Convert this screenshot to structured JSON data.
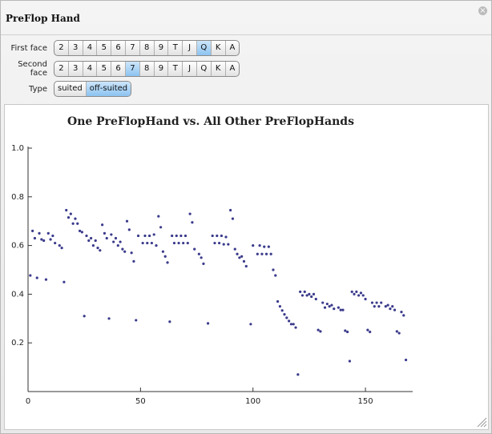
{
  "panel": {
    "title": "PreFlop Hand",
    "controls": [
      {
        "label": "First face",
        "options": [
          "2",
          "3",
          "4",
          "5",
          "6",
          "7",
          "8",
          "9",
          "T",
          "J",
          "Q",
          "K",
          "A"
        ],
        "selected": 10
      },
      {
        "label": "Second face",
        "options": [
          "2",
          "3",
          "4",
          "5",
          "6",
          "7",
          "8",
          "9",
          "T",
          "J",
          "Q",
          "K",
          "A"
        ],
        "selected": 5
      },
      {
        "label": "Type",
        "options": [
          "suited",
          "off-suited"
        ],
        "selected": 1
      }
    ]
  },
  "chart_data": {
    "type": "scatter",
    "title": "One PreFlopHand vs. All Other PreFlopHands",
    "color": "#3b3b8c",
    "x": [
      1,
      2,
      3,
      4,
      5,
      6,
      7,
      8,
      9,
      10,
      11,
      12,
      14,
      15,
      16,
      17,
      18,
      19,
      20,
      21,
      22,
      23,
      24,
      25,
      26,
      27,
      28,
      29,
      30,
      31,
      32,
      33,
      34,
      35,
      36,
      37,
      38,
      39,
      40,
      41,
      42,
      43,
      44,
      45,
      46,
      47,
      48,
      49,
      51,
      52,
      53,
      54,
      55,
      56,
      57,
      58,
      59,
      60,
      61,
      62,
      63,
      64,
      65,
      66,
      67,
      68,
      69,
      70,
      71,
      72,
      73,
      74,
      76,
      77,
      78,
      80,
      82,
      83,
      84,
      85,
      86,
      87,
      88,
      89,
      90,
      91,
      92,
      93,
      94,
      95,
      96,
      97,
      99,
      100,
      102,
      103,
      104,
      105,
      106,
      107,
      108,
      109,
      110,
      111,
      112,
      113,
      114,
      115,
      116,
      117,
      118,
      119,
      120,
      121,
      122,
      123,
      124,
      125,
      126,
      127,
      128,
      129,
      130,
      131,
      132,
      133,
      134,
      135,
      136,
      138,
      139,
      140,
      141,
      142,
      143,
      144,
      145,
      146,
      147,
      148,
      149,
      150,
      151,
      152,
      153,
      154,
      155,
      156,
      157,
      159,
      160,
      161,
      162,
      163,
      164,
      165,
      166,
      167,
      168
    ],
    "values": [
      0.477,
      0.66,
      0.63,
      0.467,
      0.65,
      0.625,
      0.62,
      0.46,
      0.65,
      0.625,
      0.64,
      0.61,
      0.6,
      0.59,
      0.45,
      0.745,
      0.715,
      0.73,
      0.69,
      0.71,
      0.69,
      0.66,
      0.655,
      0.31,
      0.64,
      0.62,
      0.63,
      0.6,
      0.62,
      0.59,
      0.58,
      0.685,
      0.65,
      0.63,
      0.3,
      0.645,
      0.615,
      0.63,
      0.6,
      0.615,
      0.585,
      0.575,
      0.7,
      0.665,
      0.57,
      0.535,
      0.293,
      0.64,
      0.61,
      0.64,
      0.61,
      0.64,
      0.61,
      0.645,
      0.6,
      0.72,
      0.675,
      0.575,
      0.555,
      0.53,
      0.287,
      0.64,
      0.61,
      0.64,
      0.61,
      0.64,
      0.61,
      0.64,
      0.61,
      0.73,
      0.695,
      0.585,
      0.565,
      0.55,
      0.525,
      0.28,
      0.64,
      0.61,
      0.64,
      0.61,
      0.64,
      0.605,
      0.635,
      0.605,
      0.745,
      0.71,
      0.585,
      0.565,
      0.55,
      0.555,
      0.535,
      0.515,
      0.277,
      0.6,
      0.565,
      0.6,
      0.565,
      0.595,
      0.565,
      0.595,
      0.565,
      0.5,
      0.477,
      0.37,
      0.35,
      0.333,
      0.317,
      0.303,
      0.29,
      0.277,
      0.277,
      0.263,
      0.07,
      0.41,
      0.395,
      0.41,
      0.395,
      0.4,
      0.39,
      0.4,
      0.38,
      0.253,
      0.247,
      0.365,
      0.345,
      0.36,
      0.35,
      0.355,
      0.34,
      0.345,
      0.335,
      0.335,
      0.25,
      0.245,
      0.125,
      0.41,
      0.4,
      0.41,
      0.395,
      0.405,
      0.395,
      0.38,
      0.253,
      0.245,
      0.365,
      0.35,
      0.365,
      0.35,
      0.365,
      0.35,
      0.355,
      0.34,
      0.35,
      0.335,
      0.247,
      0.24,
      0.327,
      0.313,
      0.13
    ],
    "xlim": [
      0,
      171
    ],
    "ylim": [
      0,
      1
    ],
    "xticks": [
      0,
      50,
      100,
      150
    ],
    "yticks": [
      0.2,
      0.4,
      0.6,
      0.8,
      {
        "value": 1,
        "label": "1.0"
      }
    ]
  }
}
